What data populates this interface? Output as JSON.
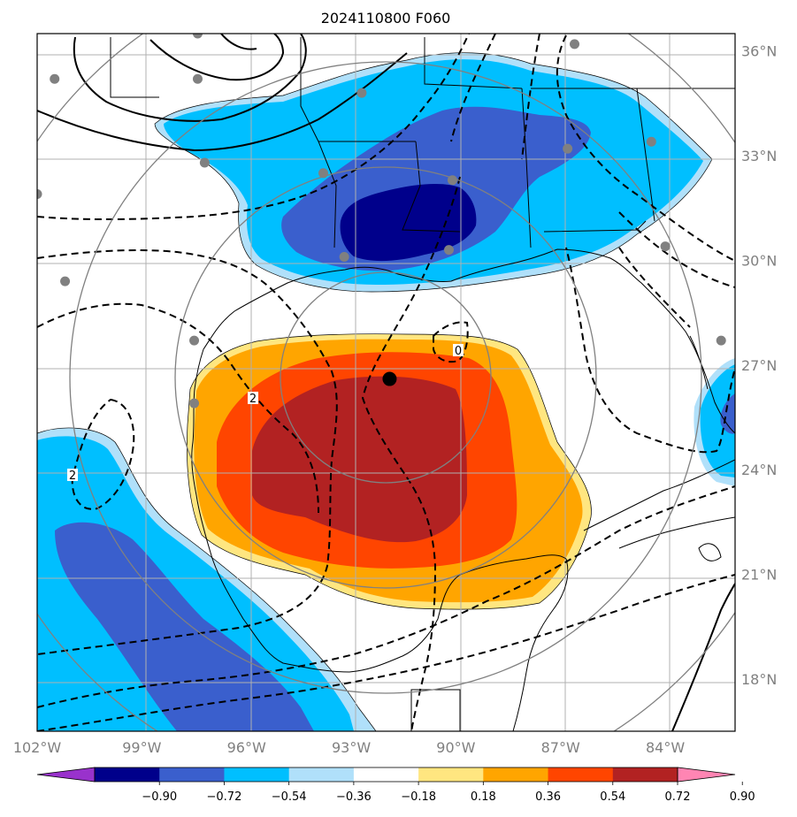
{
  "title": "2024110800 F060",
  "map": {
    "lon_range": [
      -102,
      -82
    ],
    "lat_range": [
      16.5,
      36.5
    ],
    "graticule": true,
    "lon_ticks": [
      {
        "value": -102,
        "label": "102°W"
      },
      {
        "value": -99,
        "label": "99°W"
      },
      {
        "value": -96,
        "label": "96°W"
      },
      {
        "value": -93,
        "label": "93°W"
      },
      {
        "value": -90,
        "label": "90°W"
      },
      {
        "value": -87,
        "label": "87°W"
      },
      {
        "value": -84,
        "label": "84°W"
      }
    ],
    "lat_ticks": [
      {
        "value": 36,
        "label": "36°N"
      },
      {
        "value": 33,
        "label": "33°N"
      },
      {
        "value": 30,
        "label": "30°N"
      },
      {
        "value": 27,
        "label": "27°N"
      },
      {
        "value": 24,
        "label": "24°N"
      },
      {
        "value": 21,
        "label": "21°N"
      },
      {
        "value": 18,
        "label": "18°N"
      }
    ],
    "center_marker": {
      "lon": -91.9,
      "lat": 26.6
    },
    "range_rings_center": {
      "lon": -92.0,
      "lat": 26.8
    },
    "contour_labels": [
      "0",
      "2",
      "2"
    ],
    "colorbar": {
      "ticks": [
        "−0.90",
        "−0.72",
        "−0.54",
        "−0.36",
        "−0.18",
        "0.18",
        "0.36",
        "0.54",
        "0.72",
        "0.90"
      ],
      "colors": [
        "#9932cc",
        "#00008b",
        "#3a5fcd",
        "#00bfff",
        "#b0e0fa",
        "#ffffff",
        "#ffe680",
        "#ffa500",
        "#ff4500",
        "#b22222",
        "#ff85b3"
      ],
      "extend": "both"
    },
    "stations": [
      {
        "lon": -101.5,
        "lat": 35.2
      },
      {
        "lon": -97.4,
        "lat": 35.2
      },
      {
        "lon": -97.4,
        "lat": 36.5
      },
      {
        "lon": -92.7,
        "lat": 34.8
      },
      {
        "lon": -97.2,
        "lat": 32.8
      },
      {
        "lon": -93.8,
        "lat": 32.5
      },
      {
        "lon": -90.1,
        "lat": 32.3
      },
      {
        "lon": -86.8,
        "lat": 33.2
      },
      {
        "lon": -84.4,
        "lat": 33.4
      },
      {
        "lon": -86.6,
        "lat": 36.2
      },
      {
        "lon": -102.0,
        "lat": 31.9
      },
      {
        "lon": -101.2,
        "lat": 29.4
      },
      {
        "lon": -93.2,
        "lat": 30.1
      },
      {
        "lon": -90.2,
        "lat": 30.3
      },
      {
        "lon": -84.0,
        "lat": 30.4
      },
      {
        "lon": -97.5,
        "lat": 27.7
      },
      {
        "lon": -97.5,
        "lat": 25.9
      },
      {
        "lon": -82.4,
        "lat": 27.7
      }
    ]
  }
}
